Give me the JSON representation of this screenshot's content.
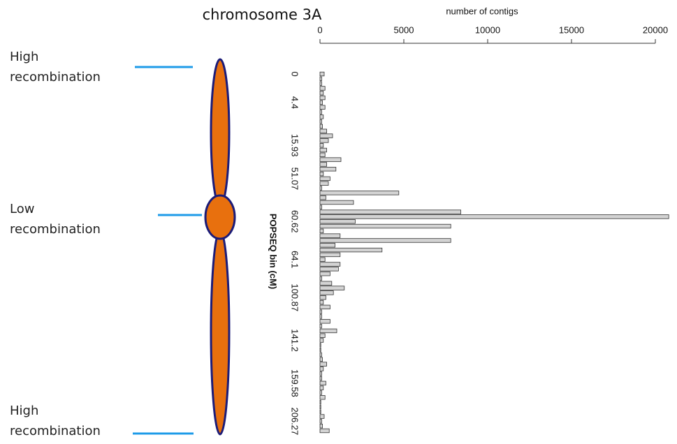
{
  "chart_data": {
    "type": "bar",
    "orientation": "horizontal",
    "title": "chromosome 3A",
    "xlabel": "number of contigs",
    "ylabel": "POPSEQ bin (cM)",
    "annotations": [
      [
        "High",
        "recombination"
      ],
      [
        "Low",
        "recombination"
      ],
      [
        "High",
        "recombination"
      ]
    ],
    "color": "#d3d3d3",
    "xlim": [
      0,
      20000
    ],
    "xticks": [
      0,
      5000,
      10000,
      15000,
      20000
    ],
    "categories": [
      "0",
      null,
      null,
      null,
      null,
      null,
      "4.4",
      null,
      null,
      null,
      null,
      null,
      null,
      null,
      null,
      "15.93",
      null,
      null,
      null,
      null,
      null,
      null,
      "51.07",
      null,
      null,
      null,
      null,
      null,
      null,
      null,
      null,
      "60.62",
      null,
      null,
      null,
      null,
      null,
      null,
      null,
      "64.1",
      null,
      null,
      null,
      null,
      null,
      null,
      null,
      "100.87",
      null,
      null,
      null,
      null,
      null,
      null,
      null,
      null,
      "141.2",
      null,
      null,
      null,
      null,
      null,
      null,
      null,
      null,
      "159.58",
      null,
      null,
      null,
      null,
      null,
      null,
      null,
      "206.27",
      null,
      null
    ],
    "values": [
      250,
      100,
      100,
      300,
      200,
      300,
      150,
      300,
      100,
      200,
      100,
      150,
      400,
      750,
      500,
      200,
      400,
      300,
      1250,
      400,
      950,
      200,
      600,
      500,
      100,
      4700,
      350,
      2000,
      100,
      8400,
      20800,
      2100,
      7800,
      200,
      1200,
      7800,
      900,
      3700,
      1200,
      300,
      1200,
      1100,
      600,
      100,
      700,
      1450,
      800,
      350,
      200,
      600,
      100,
      100,
      600,
      100,
      1000,
      300,
      200,
      50,
      50,
      100,
      150,
      400,
      200,
      100,
      100,
      350,
      200,
      100,
      300,
      50,
      50,
      50,
      250,
      100,
      150,
      550
    ]
  }
}
